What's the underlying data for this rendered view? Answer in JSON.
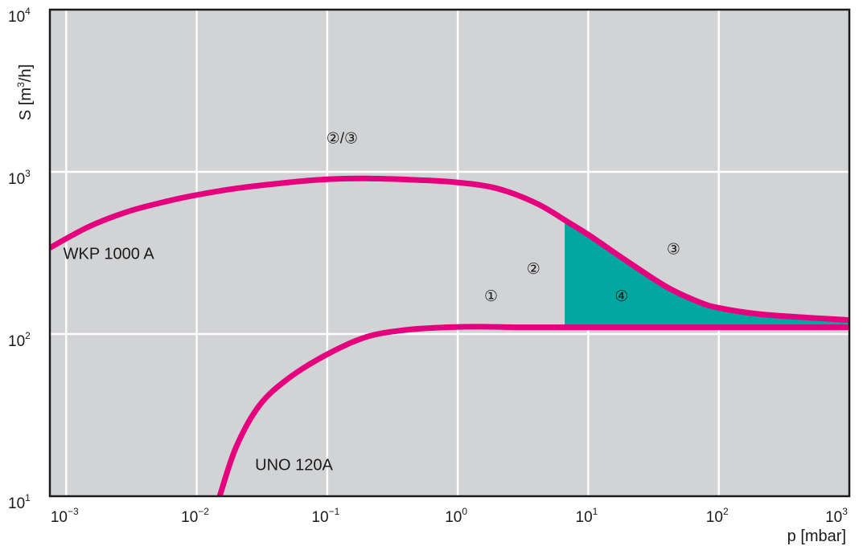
{
  "chart_data": {
    "type": "line",
    "xlabel": "p [mbar]",
    "ylabel_base": "S [m",
    "ylabel_sup": "3",
    "ylabel_end": "/h]",
    "xscale": "log",
    "yscale": "log",
    "xlim": [
      0.00075,
      1000
    ],
    "ylim": [
      10,
      10000
    ],
    "grid": true,
    "x_ticks": [
      {
        "base": "10",
        "exp": "−3",
        "value": 0.001
      },
      {
        "base": "10",
        "exp": "−2",
        "value": 0.01
      },
      {
        "base": "10",
        "exp": "−1",
        "value": 0.1
      },
      {
        "base": "10",
        "exp": "0",
        "value": 1
      },
      {
        "base": "10",
        "exp": "1",
        "value": 10
      },
      {
        "base": "10",
        "exp": "2",
        "value": 100
      },
      {
        "base": "10",
        "exp": "3",
        "value": 1000
      }
    ],
    "y_ticks": [
      {
        "base": "10",
        "exp": "1",
        "value": 10
      },
      {
        "base": "10",
        "exp": "2",
        "value": 100
      },
      {
        "base": "10",
        "exp": "3",
        "value": 1000
      },
      {
        "base": "10",
        "exp": "4",
        "value": 10000
      }
    ],
    "series": [
      {
        "name": "WKP 1000 A",
        "color": "#e5007d",
        "points": [
          [
            0.00075,
            340
          ],
          [
            0.0015,
            460
          ],
          [
            0.003,
            570
          ],
          [
            0.006,
            660
          ],
          [
            0.01,
            720
          ],
          [
            0.02,
            790
          ],
          [
            0.05,
            860
          ],
          [
            0.1,
            900
          ],
          [
            0.2,
            910
          ],
          [
            0.5,
            890
          ],
          [
            1,
            860
          ],
          [
            2,
            790
          ],
          [
            4,
            640
          ],
          [
            7,
            490
          ],
          [
            10,
            410
          ],
          [
            20,
            280
          ],
          [
            40,
            195
          ],
          [
            70,
            158
          ],
          [
            100,
            145
          ],
          [
            200,
            133
          ],
          [
            500,
            126
          ],
          [
            1000,
            122
          ]
        ]
      },
      {
        "name": "UNO 120A",
        "color": "#e5007d",
        "points": [
          [
            0.015,
            10
          ],
          [
            0.02,
            20
          ],
          [
            0.03,
            36
          ],
          [
            0.05,
            53
          ],
          [
            0.1,
            75
          ],
          [
            0.2,
            96
          ],
          [
            0.4,
            106
          ],
          [
            0.8,
            110
          ],
          [
            1.5,
            111
          ],
          [
            3,
            110
          ],
          [
            10,
            110
          ],
          [
            100,
            110
          ],
          [
            1000,
            110
          ]
        ]
      }
    ],
    "shaded_region": {
      "color": "#00a6a0",
      "x_from": 6.6,
      "x_to": 1000
    },
    "annotations": [
      {
        "text": "②/③",
        "x": 0.13,
        "y": 1500
      },
      {
        "text": "③",
        "x": 45,
        "y": 310
      },
      {
        "text": "②",
        "x": 3.8,
        "y": 235
      },
      {
        "text": "①",
        "x": 1.8,
        "y": 160
      },
      {
        "text": "④",
        "x": 18,
        "y": 160
      }
    ],
    "series_labels": [
      {
        "text": "WKP 1000 A",
        "x": 0.00095,
        "y": 290
      },
      {
        "text": "UNO 120A",
        "x": 0.028,
        "y": 14.5
      }
    ]
  },
  "colors": {
    "plot_bg": "#d2d3d5",
    "grid": "#ffffff",
    "frame": "#1a1a1a"
  }
}
